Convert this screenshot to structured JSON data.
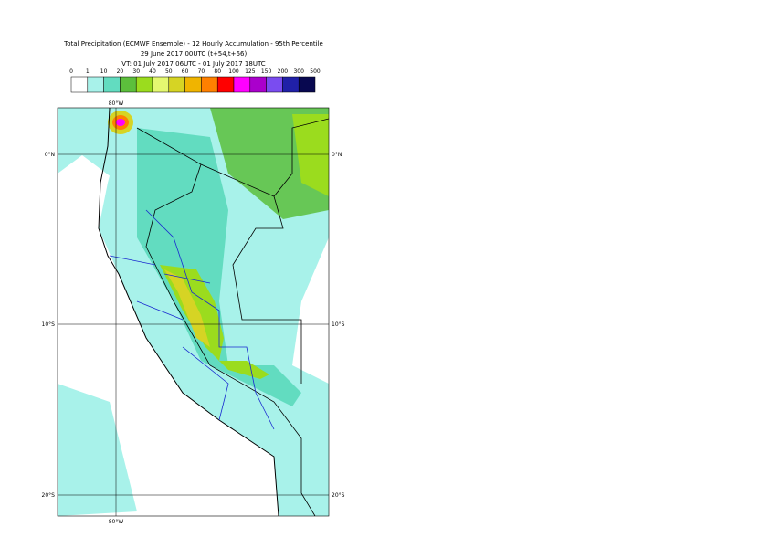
{
  "header": {
    "title": "Total Precipitation (ECMWF Ensemble) - 12 Hourly Accumulation - 95th Percentile",
    "base": "29 June 2017 00UTC (t+54,t+66)",
    "valid": "VT: 01 July 2017 06UTC - 01 July 2017 18UTC"
  },
  "legend": {
    "labels": [
      "0",
      "1",
      "10",
      "20",
      "30",
      "40",
      "50",
      "60",
      "70",
      "80",
      "100",
      "125",
      "150",
      "200",
      "300",
      "500"
    ],
    "colors": [
      "#ffffff",
      "#a8f2ea",
      "#62dcc0",
      "#5cbf3c",
      "#9bdc1e",
      "#e4f870",
      "#d6d424",
      "#f0b400",
      "#ff8000",
      "#ff0000",
      "#ff00ff",
      "#aa00cc",
      "#7a4cf0",
      "#2020a8",
      "#080850"
    ]
  },
  "map": {
    "lat_labels": [
      "0°N",
      "10°S",
      "20°S"
    ],
    "lon_labels": [
      "80°W",
      "80°W"
    ]
  }
}
